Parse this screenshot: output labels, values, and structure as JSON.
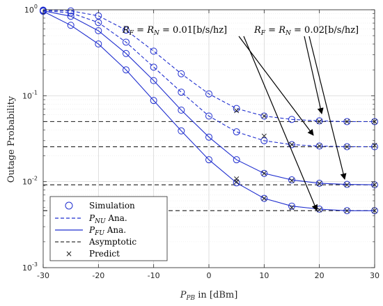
{
  "chart_data": {
    "type": "line",
    "y_scale": "log",
    "xlabel": "P_PB in [dBm]",
    "ylabel": "Outage Probability",
    "xlim": [
      -30,
      30
    ],
    "ylim": [
      0.001,
      1
    ],
    "x_ticks": [
      -30,
      -20,
      -10,
      0,
      10,
      20,
      30
    ],
    "x_tick_labels": [
      "-30",
      "-20",
      "-10",
      "0",
      "10",
      "20",
      "30"
    ],
    "y_ticks": [
      0.001,
      0.01,
      0.1,
      1
    ],
    "y_tick_labels": [
      {
        "base": "10",
        "exp": "-3"
      },
      {
        "base": "10",
        "exp": "-2"
      },
      {
        "base": "10",
        "exp": "-1"
      },
      {
        "base": "10",
        "exp": "0"
      }
    ],
    "grid": true,
    "legend_position": "bottom-left",
    "legend": [
      {
        "label": "Simulation",
        "style": "circle"
      },
      {
        "label": "P_NU Ana.",
        "style": "dashed-blue"
      },
      {
        "label": "P_FU Ana.",
        "style": "solid-blue"
      },
      {
        "label": "Asymptotic",
        "style": "dashed-black"
      },
      {
        "label": "Predict",
        "style": "cross"
      }
    ],
    "annotations": [
      {
        "text": "R_F = R_N = 0.01[b/s/hz]"
      },
      {
        "text": "R_F = R_N = 0.02[b/s/hz]"
      }
    ],
    "colors": {
      "curve": "#1f2ecf",
      "asymptote": "#333333",
      "marker": "#1f2ecf",
      "predict": "#222222"
    },
    "curves": [
      {
        "style": "dashed",
        "rate": "0.02",
        "x": [
          -30,
          -25,
          -20,
          -15,
          -10,
          -5,
          0,
          5,
          10,
          15,
          20,
          25,
          30
        ],
        "y": [
          0.99,
          0.97,
          0.85,
          0.58,
          0.33,
          0.18,
          0.105,
          0.071,
          0.058,
          0.053,
          0.051,
          0.05,
          0.05
        ]
      },
      {
        "style": "dashed",
        "rate": "0.01",
        "x": [
          -30,
          -25,
          -20,
          -15,
          -10,
          -5,
          0,
          5,
          10,
          15,
          20,
          25,
          30
        ],
        "y": [
          0.98,
          0.92,
          0.71,
          0.42,
          0.215,
          0.11,
          0.058,
          0.038,
          0.03,
          0.027,
          0.026,
          0.0255,
          0.0255
        ]
      },
      {
        "style": "solid",
        "rate": "0.02",
        "x": [
          -30,
          -25,
          -20,
          -15,
          -10,
          -5,
          0,
          5,
          10,
          15,
          20,
          25,
          30
        ],
        "y": [
          0.97,
          0.84,
          0.57,
          0.31,
          0.15,
          0.068,
          0.033,
          0.018,
          0.0125,
          0.0105,
          0.0096,
          0.0093,
          0.0092
        ]
      },
      {
        "style": "solid",
        "rate": "0.01",
        "x": [
          -30,
          -25,
          -20,
          -15,
          -10,
          -5,
          0,
          5,
          10,
          15,
          20,
          25,
          30
        ],
        "y": [
          0.96,
          0.66,
          0.4,
          0.2,
          0.088,
          0.039,
          0.018,
          0.0097,
          0.0064,
          0.0052,
          0.0048,
          0.0046,
          0.0046
        ]
      }
    ],
    "asymptotes": [
      0.05,
      0.0255,
      0.0092,
      0.0046
    ],
    "simulation_x": [
      -30,
      -25,
      -20,
      -15,
      -10,
      -5,
      0,
      5,
      10,
      15,
      20,
      25,
      30
    ],
    "predict_points": [
      {
        "x": 5,
        "y": 0.067
      },
      {
        "x": 10,
        "y": 0.058
      },
      {
        "x": 20,
        "y": 0.05
      },
      {
        "x": 25,
        "y": 0.05
      },
      {
        "x": 30,
        "y": 0.05
      },
      {
        "x": 10,
        "y": 0.034
      },
      {
        "x": 15,
        "y": 0.027
      },
      {
        "x": 20,
        "y": 0.026
      },
      {
        "x": 25,
        "y": 0.0255
      },
      {
        "x": 30,
        "y": 0.0265
      },
      {
        "x": 5,
        "y": 0.0108
      },
      {
        "x": 10,
        "y": 0.0125
      },
      {
        "x": 15,
        "y": 0.0103
      },
      {
        "x": 20,
        "y": 0.0095
      },
      {
        "x": 25,
        "y": 0.0092
      },
      {
        "x": 30,
        "y": 0.0092
      },
      {
        "x": 5,
        "y": 0.01
      },
      {
        "x": 10,
        "y": 0.0064
      },
      {
        "x": 15,
        "y": 0.005
      },
      {
        "x": 20,
        "y": 0.0047
      },
      {
        "x": 25,
        "y": 0.0046
      },
      {
        "x": 30,
        "y": 0.0046
      }
    ]
  }
}
